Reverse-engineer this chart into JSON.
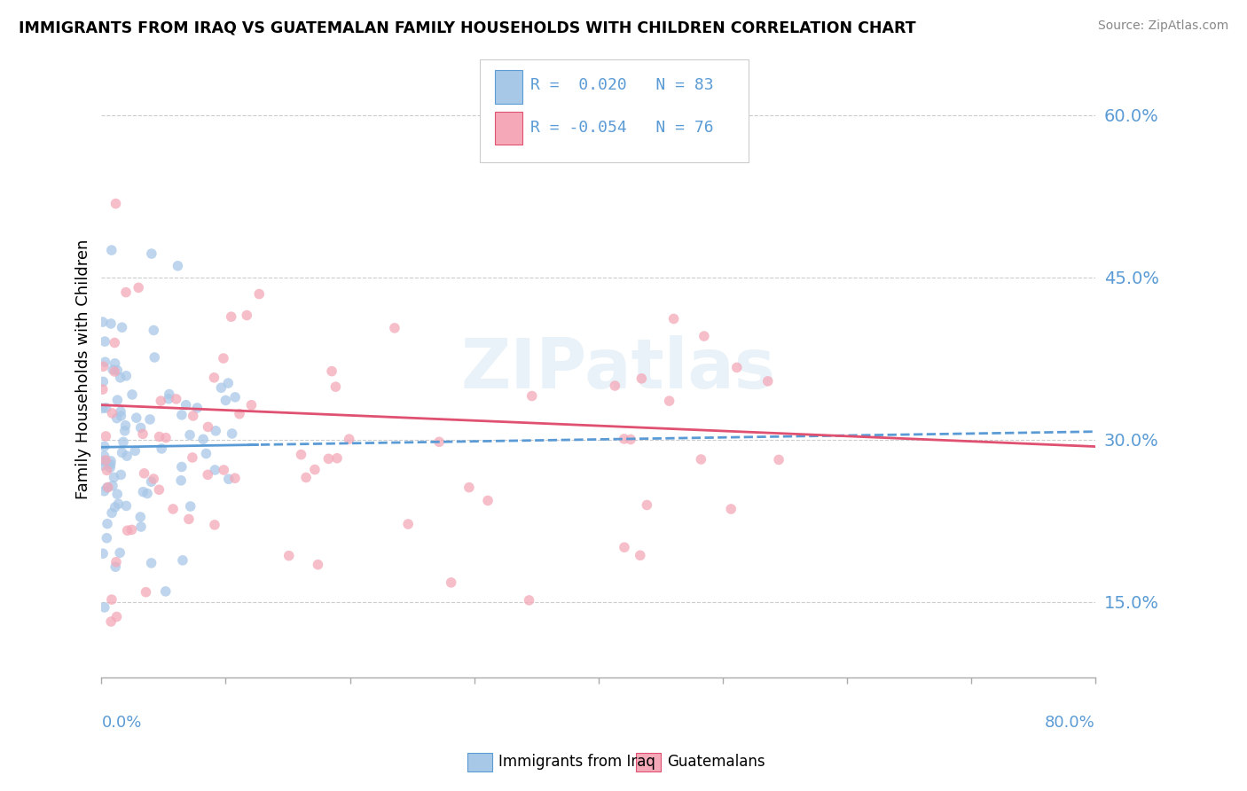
{
  "title": "IMMIGRANTS FROM IRAQ VS GUATEMALAN FAMILY HOUSEHOLDS WITH CHILDREN CORRELATION CHART",
  "source": "Source: ZipAtlas.com",
  "ylabel": "Family Households with Children",
  "xlim": [
    0.0,
    0.8
  ],
  "ylim": [
    0.08,
    0.65
  ],
  "yticks": [
    0.15,
    0.3,
    0.45,
    0.6
  ],
  "ytick_labels": [
    "15.0%",
    "30.0%",
    "45.0%",
    "60.0%"
  ],
  "color_blue": "#a8c8e8",
  "color_pink": "#f4a8b8",
  "trend_blue": "#5b9bd5",
  "trend_pink": "#e05070",
  "watermark": "ZIPatlas",
  "series1_name": "Immigrants from Iraq",
  "series2_name": "Guatemalans",
  "iraq_seed": 12345,
  "guate_seed": 67890,
  "iraq_n": 83,
  "guate_n": 76
}
